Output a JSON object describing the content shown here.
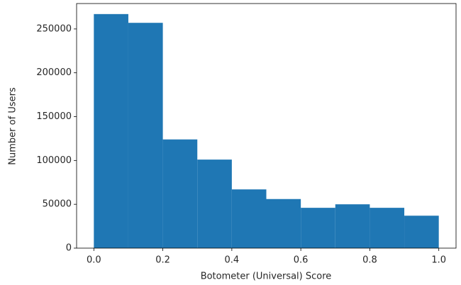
{
  "chart_data": {
    "type": "histogram",
    "xlabel": "Botometer (Universal) Score",
    "ylabel": "Number of Users",
    "bins": [
      0,
      0.1,
      0.2,
      0.3,
      0.4,
      0.5,
      0.6,
      0.7,
      0.8,
      0.9,
      1
    ],
    "values": [
      267000,
      257000,
      124000,
      101000,
      67000,
      56000,
      46000,
      50000,
      46000,
      37000
    ],
    "color": "#1f77b4",
    "xlim": [
      -0.05,
      1.05
    ],
    "xticks": [
      {
        "value": 0,
        "label": "0.0"
      },
      0.2,
      0.4,
      0.6,
      0.8,
      {
        "value": 1,
        "label": "1.0"
      }
    ],
    "ylim": [
      0,
      279000
    ],
    "yticks": [
      0,
      50000,
      100000,
      150000,
      200000,
      250000
    ]
  }
}
